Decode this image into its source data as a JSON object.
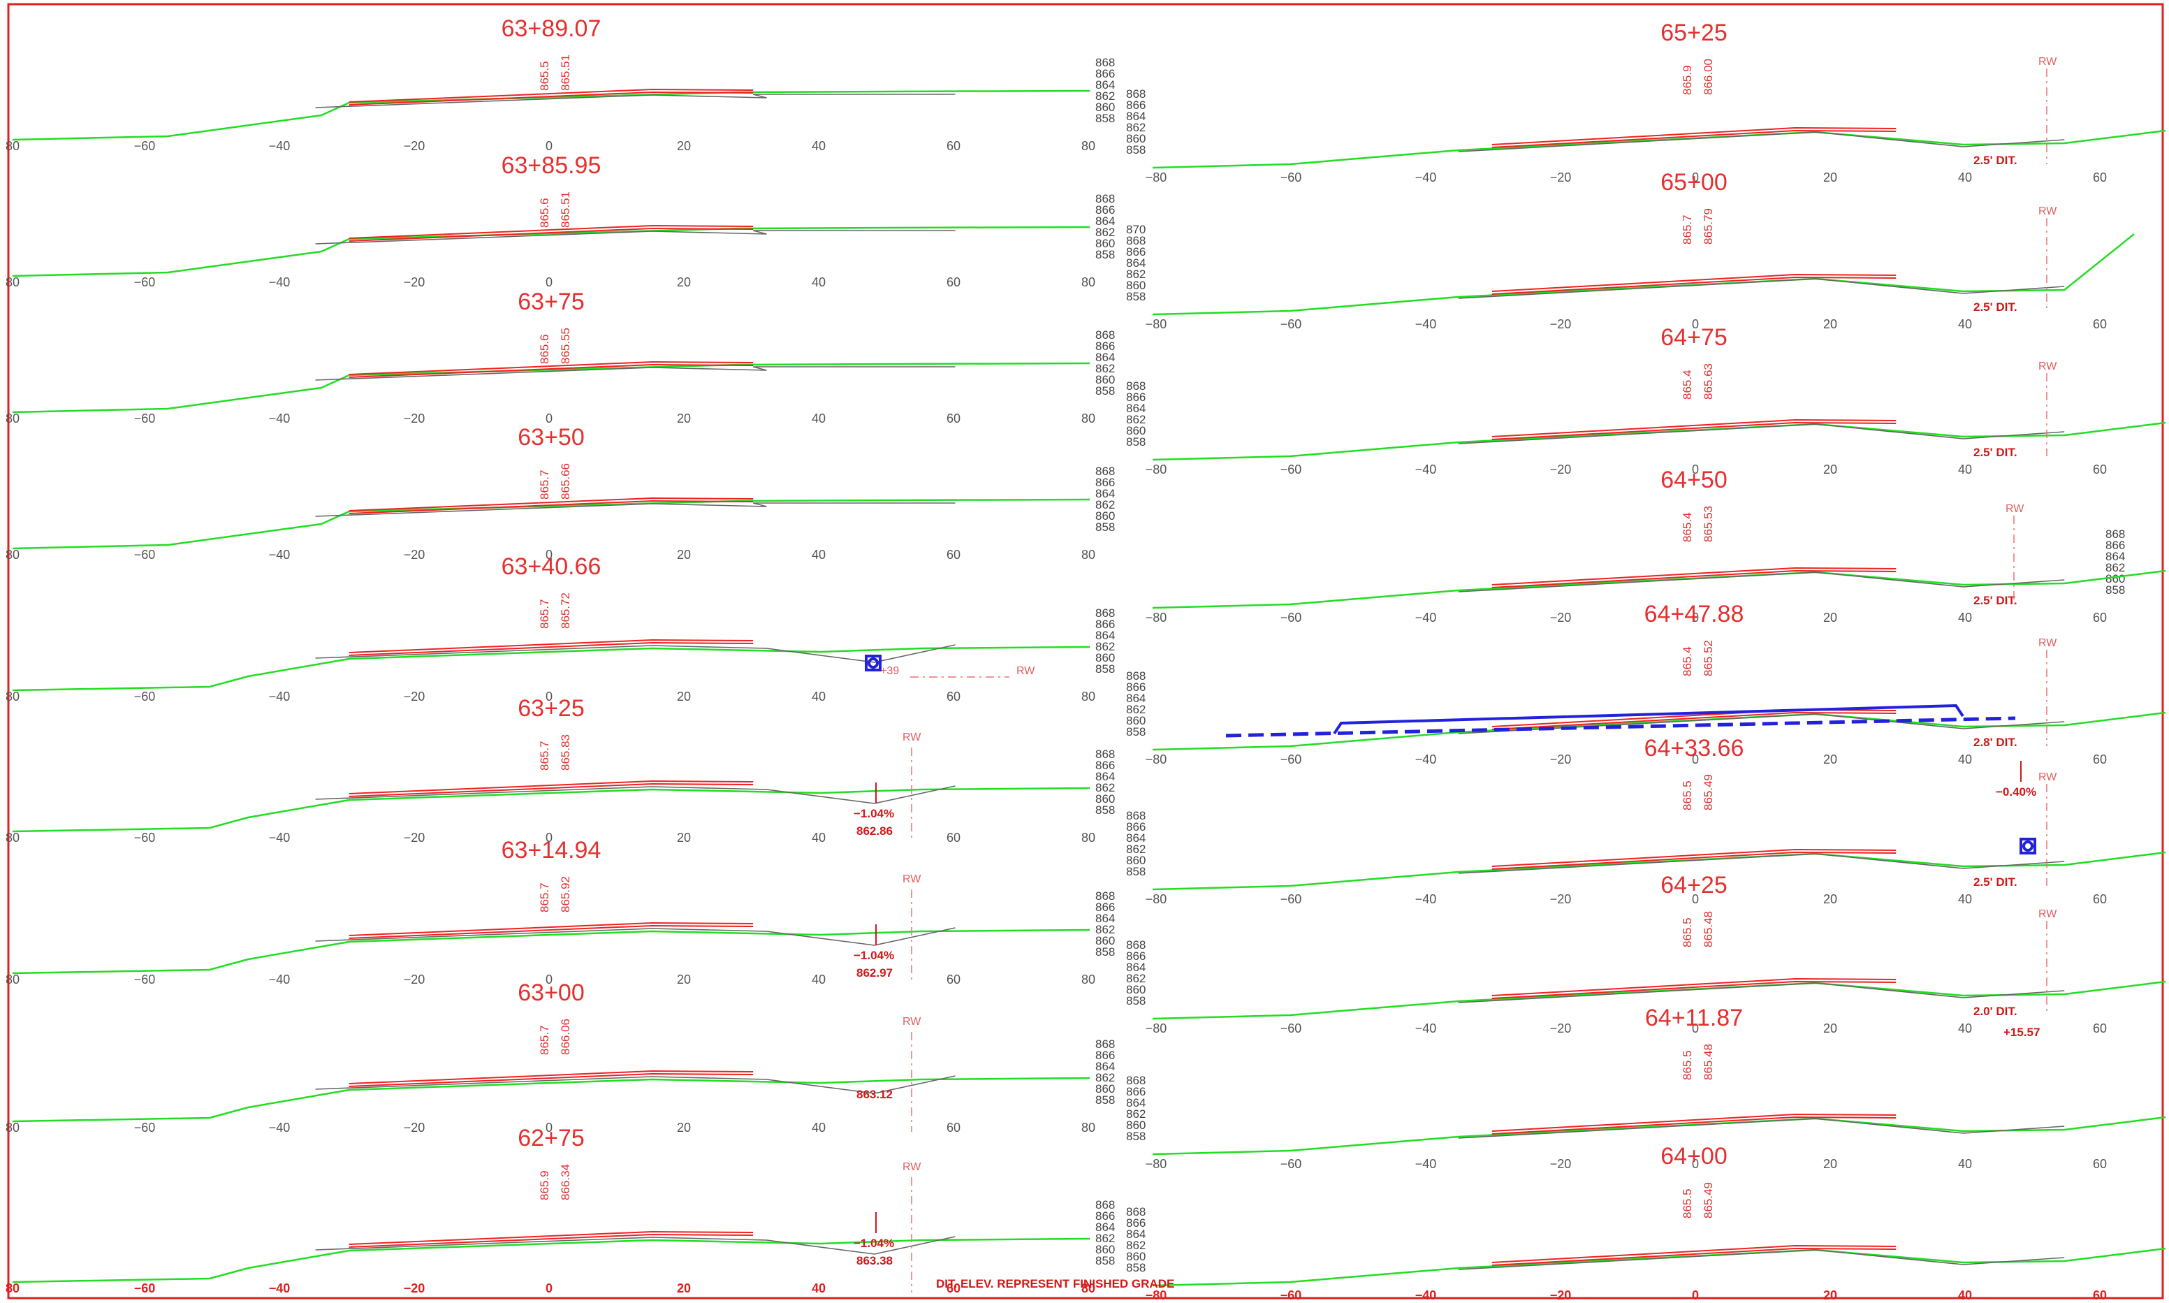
{
  "note": "DIT. ELEV. REPRESENT FINISHED GRADE",
  "left_sections": [
    {
      "station": "63+89.07",
      "elev_existing": "865.5",
      "elev_proposed": "865.51",
      "elev_ticks": [
        "868",
        "866",
        "864",
        "862",
        "860",
        "858"
      ],
      "x_ticks": [
        "80",
        "−60",
        "−40",
        "−20",
        "0",
        "20",
        "40",
        "60",
        "80"
      ],
      "annotations": [],
      "rw": []
    },
    {
      "station": "63+85.95",
      "elev_existing": "865.6",
      "elev_proposed": "865.51",
      "elev_ticks": [
        "868",
        "866",
        "864",
        "862",
        "860",
        "858"
      ],
      "x_ticks": [
        "80",
        "−60",
        "−40",
        "−20",
        "0",
        "20",
        "40",
        "60",
        "80"
      ],
      "annotations": [],
      "rw": []
    },
    {
      "station": "63+75",
      "elev_existing": "865.6",
      "elev_proposed": "865.55",
      "elev_ticks": [
        "868",
        "866",
        "864",
        "862",
        "860",
        "858"
      ],
      "x_ticks": [
        "80",
        "−60",
        "−40",
        "−20",
        "0",
        "20",
        "40",
        "60",
        "80"
      ],
      "annotations": [],
      "rw": []
    },
    {
      "station": "63+50",
      "elev_existing": "865.7",
      "elev_proposed": "865.66",
      "elev_ticks": [
        "868",
        "866",
        "864",
        "862",
        "860",
        "858"
      ],
      "x_ticks": [
        "80",
        "−60",
        "−40",
        "−20",
        "0",
        "20",
        "40",
        "60",
        "80"
      ],
      "annotations": [],
      "rw": []
    },
    {
      "station": "63+40.66",
      "elev_existing": "865.7",
      "elev_proposed": "865.72",
      "elev_ticks": [
        "868",
        "866",
        "864",
        "862",
        "860",
        "858"
      ],
      "x_ticks": [
        "80",
        "−60",
        "−40",
        "−20",
        "0",
        "20",
        "40",
        "60",
        "80"
      ],
      "annotations": [],
      "rw": [
        "+39",
        "RW"
      ]
    },
    {
      "station": "63+25",
      "elev_existing": "865.7",
      "elev_proposed": "865.83",
      "elev_ticks": [
        "868",
        "866",
        "864",
        "862",
        "860",
        "858"
      ],
      "x_ticks": [
        "80",
        "−60",
        "−40",
        "−20",
        "0",
        "20",
        "40",
        "60",
        "80"
      ],
      "annotations": [
        "−1.04%",
        "862.86"
      ],
      "rw": [
        "RW"
      ]
    },
    {
      "station": "63+14.94",
      "elev_existing": "865.7",
      "elev_proposed": "865.92",
      "elev_ticks": [
        "868",
        "866",
        "864",
        "862",
        "860",
        "858"
      ],
      "x_ticks": [
        "80",
        "−60",
        "−40",
        "−20",
        "0",
        "20",
        "40",
        "60",
        "80"
      ],
      "annotations": [
        "−1.04%",
        "862.97"
      ],
      "rw": [
        "RW"
      ]
    },
    {
      "station": "63+00",
      "elev_existing": "865.7",
      "elev_proposed": "866.06",
      "elev_ticks": [
        "868",
        "866",
        "864",
        "862",
        "860",
        "858"
      ],
      "x_ticks": [
        "80",
        "−60",
        "−40",
        "−20",
        "0",
        "20",
        "40",
        "60",
        "80"
      ],
      "annotations": [
        "863.12"
      ],
      "rw": [
        "RW"
      ]
    },
    {
      "station": "62+75",
      "elev_existing": "865.9",
      "elev_proposed": "866.34",
      "elev_ticks": [
        "868",
        "866",
        "864",
        "862",
        "860",
        "858"
      ],
      "x_ticks": [
        "80",
        "−60",
        "−40",
        "−20",
        "0",
        "20",
        "40",
        "60",
        "80"
      ],
      "annotations": [
        "−1.04%",
        "863.38"
      ],
      "rw": [
        "RW"
      ]
    }
  ],
  "right_sections": [
    {
      "station": "65+25",
      "elev_existing": "865.9",
      "elev_proposed": "866.00",
      "elev_ticks": [
        "868",
        "866",
        "864",
        "862",
        "860",
        "858"
      ],
      "x_ticks": [
        "−80",
        "−60",
        "−40",
        "−20",
        "0",
        "20",
        "40",
        "60"
      ],
      "annotations": [
        "2.5' DIT."
      ],
      "rw": [
        "RW"
      ]
    },
    {
      "station": "65+00",
      "elev_existing": "865.7",
      "elev_proposed": "865.79",
      "elev_ticks": [
        "870",
        "868",
        "866",
        "864",
        "862",
        "860",
        "858"
      ],
      "x_ticks": [
        "−80",
        "−60",
        "−40",
        "−20",
        "0",
        "20",
        "40",
        "60"
      ],
      "annotations": [
        "2.5' DIT."
      ],
      "rw": [
        "RW"
      ]
    },
    {
      "station": "64+75",
      "elev_existing": "865.4",
      "elev_proposed": "865.63",
      "elev_ticks": [
        "868",
        "866",
        "864",
        "862",
        "860",
        "858"
      ],
      "x_ticks": [
        "−80",
        "−60",
        "−40",
        "−20",
        "0",
        "20",
        "40",
        "60"
      ],
      "annotations": [
        "2.5' DIT."
      ],
      "rw": [
        "RW"
      ]
    },
    {
      "station": "64+50",
      "elev_existing": "865.4",
      "elev_proposed": "865.53",
      "elev_ticks": [
        "868",
        "866",
        "864",
        "862",
        "860",
        "858"
      ],
      "x_ticks": [
        "−80",
        "−60",
        "−40",
        "−20",
        "0",
        "20",
        "40",
        "60"
      ],
      "annotations": [
        "2.5' DIT."
      ],
      "rw": [
        "RW"
      ]
    },
    {
      "station": "64+47.88",
      "elev_existing": "865.4",
      "elev_proposed": "865.52",
      "elev_ticks": [
        "868",
        "866",
        "864",
        "862",
        "860",
        "858"
      ],
      "x_ticks": [
        "−80",
        "−60",
        "−40",
        "−20",
        "0",
        "20",
        "40",
        "60"
      ],
      "annotations": [
        "2.8' DIT."
      ],
      "rw": [
        "RW"
      ]
    },
    {
      "station": "64+33.66",
      "elev_existing": "865.5",
      "elev_proposed": "865.49",
      "elev_ticks": [
        "868",
        "866",
        "864",
        "862",
        "860",
        "858"
      ],
      "x_ticks": [
        "−80",
        "−60",
        "−40",
        "−20",
        "0",
        "20",
        "40",
        "60"
      ],
      "annotations": [
        "−0.40%",
        "2.5' DIT."
      ],
      "rw": [
        "RW"
      ]
    },
    {
      "station": "64+25",
      "elev_existing": "865.5",
      "elev_proposed": "865.48",
      "elev_ticks": [
        "868",
        "866",
        "864",
        "862",
        "860",
        "858"
      ],
      "x_ticks": [
        "−80",
        "−60",
        "−40",
        "−20",
        "0",
        "20",
        "40",
        "60"
      ],
      "annotations": [
        "2.0' DIT.",
        "+15.57"
      ],
      "rw": [
        "RW"
      ]
    },
    {
      "station": "64+11.87",
      "elev_existing": "865.5",
      "elev_proposed": "865.48",
      "elev_ticks": [
        "868",
        "866",
        "864",
        "862",
        "860",
        "858"
      ],
      "x_ticks": [
        "−80",
        "−60",
        "−40",
        "−20",
        "0",
        "20",
        "40",
        "60"
      ],
      "annotations": [],
      "rw": []
    },
    {
      "station": "64+00",
      "elev_existing": "865.5",
      "elev_proposed": "865.49",
      "elev_ticks": [
        "868",
        "866",
        "864",
        "862",
        "860",
        "858"
      ],
      "x_ticks": [
        "−80",
        "−60",
        "−40",
        "−20",
        "0",
        "20",
        "40",
        "60"
      ],
      "annotations": [],
      "rw": []
    }
  ],
  "colors": {
    "existing_ground": "#22dd22",
    "proposed_road": "#ee2222",
    "subgrade": "#666666",
    "culvert": "#2222dd",
    "text": "#e53030"
  }
}
